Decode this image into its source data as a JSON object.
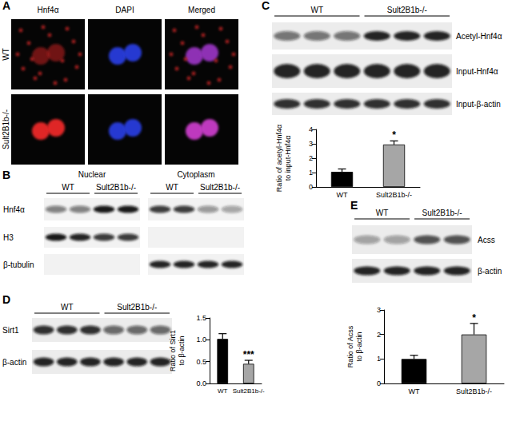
{
  "chart_data": [
    {
      "type": "bar",
      "categories": [
        "WT",
        "Sult2B1b-/-"
      ],
      "values": [
        1.05,
        2.95
      ],
      "errors": [
        0.2,
        0.25
      ],
      "colors": [
        "#000000",
        "#a6a6a6"
      ],
      "ylabel": "Ratio of acetyl-Hnf4α\nto input-Hnf4α",
      "ylim": [
        0,
        4
      ],
      "yticks": [
        0,
        1,
        2,
        3,
        4
      ],
      "grid": false,
      "annotations": [
        {
          "category": "Sult2B1b-/-",
          "text": "*"
        }
      ]
    },
    {
      "type": "bar",
      "categories": [
        "WT",
        "Sult2B1b-/-"
      ],
      "values": [
        1.02,
        0.45
      ],
      "errors": [
        0.12,
        0.08
      ],
      "colors": [
        "#000000",
        "#a6a6a6"
      ],
      "ylabel": "Ratio of Sirt1\nto β-actin",
      "ylim": [
        0,
        1.5
      ],
      "yticks": [
        {
          "value": 0,
          "label": "0.0"
        },
        {
          "value": 0.5,
          "label": "0.5"
        },
        {
          "value": 1,
          "label": "1.0"
        },
        {
          "value": 1.5,
          "label": "1.5"
        }
      ],
      "grid": false,
      "annotations": [
        {
          "category": "Sult2B1b-/-",
          "text": "***"
        }
      ]
    },
    {
      "type": "bar",
      "categories": [
        "WT",
        "Sult2B1b-/-"
      ],
      "values": [
        1.0,
        2.0
      ],
      "errors": [
        0.15,
        0.45
      ],
      "colors": [
        "#000000",
        "#a6a6a6"
      ],
      "ylabel": "Ratio of Acss\nto β-actin",
      "ylim": [
        0,
        3
      ],
      "yticks": [
        0,
        1,
        2,
        3
      ],
      "grid": false,
      "annotations": [
        {
          "category": "Sult2B1b-/-",
          "text": "*"
        }
      ]
    }
  ],
  "panels": {
    "A": {
      "label": "A",
      "columns": [
        "Hnf4α",
        "DAPI",
        "Merged"
      ],
      "rows": [
        "WT",
        "Sult2B1b-/-"
      ]
    },
    "B": {
      "label": "B",
      "fractions": [
        "Nuclear",
        "Cytoplasm"
      ],
      "lanes": [
        "WT",
        "Sult2B1b-/-"
      ],
      "blots": [
        "Hnf4α",
        "H3",
        "β-tubulin"
      ]
    },
    "C": {
      "label": "C",
      "lanes": [
        "WT",
        "Sult2B1b-/-"
      ],
      "blots": [
        "Acetyl-Hnf4α",
        "Input-Hnf4α",
        "Input-β-actin"
      ]
    },
    "D": {
      "label": "D",
      "lanes": [
        "WT",
        "Sult2B1b-/-"
      ],
      "blots": [
        "Sirt1",
        "β-actin"
      ]
    },
    "E": {
      "label": "E",
      "lanes": [
        "WT",
        "Sult2B1b-/-"
      ],
      "blots": [
        "Acss",
        "β-actin"
      ]
    }
  }
}
